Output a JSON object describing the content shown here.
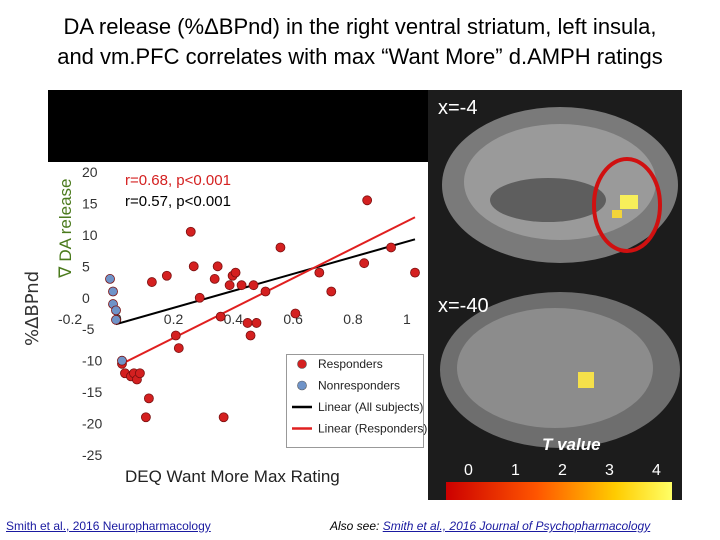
{
  "title": {
    "line1": "DA release (%ΔBPnd) in the right ventral striatum, left insula,",
    "line2": "and vm.PFC correlates with max “Want More” d.AMPH ratings"
  },
  "y_outer_label": "%ΔBPnd",
  "y_inner_label": "ᐁ DA release",
  "stats": {
    "line1": "r=0.68, p<0.001",
    "line2": "r=0.57, p<0.001"
  },
  "brain": {
    "slice1": "x=-4",
    "slice2": "x=-40",
    "colorbar_title": "T value",
    "colorbar_ticks": [
      "0",
      "1",
      "2",
      "3",
      "4"
    ]
  },
  "footer": {
    "left": "Smith et al., 2016 Neuropharmacology",
    "right_prefix": "Also see: ",
    "right_link": "Smith et al., 2016 Journal of Psychopharmacology"
  },
  "colors": {
    "responders": "#d42020",
    "nonresponders": "#6f93c8",
    "fit_all": "#000000",
    "fit_responders": "#e02020",
    "circle": "#d01010"
  },
  "chart_data": {
    "type": "scatter",
    "xlabel": "DEQ Want More Max Rating",
    "ylabel": "",
    "xlim": [
      -0.2,
      1
    ],
    "ylim": [
      -25,
      20
    ],
    "xticks": [
      "-0.2",
      "0",
      "0.2",
      "0.4",
      "0.6",
      "0.8",
      "1"
    ],
    "yticks": [
      "20",
      "15",
      "10",
      "5",
      "0",
      "-5",
      "-10",
      "-15",
      "-20",
      "-25"
    ],
    "legend_position": "bottom-right",
    "series": [
      {
        "name": "Responders",
        "points": [
          [
            0.02,
            -10.5
          ],
          [
            0.03,
            -12
          ],
          [
            0.05,
            -12.5
          ],
          [
            0.06,
            -12
          ],
          [
            0.07,
            -13
          ],
          [
            0.08,
            -12
          ],
          [
            0.1,
            -19
          ],
          [
            0.11,
            -16
          ],
          [
            0.12,
            2.5
          ],
          [
            0.17,
            3.5
          ],
          [
            0.2,
            -6
          ],
          [
            0.21,
            -8
          ],
          [
            0.25,
            10.5
          ],
          [
            0.26,
            5
          ],
          [
            0.28,
            0
          ],
          [
            0.33,
            3
          ],
          [
            0.34,
            5
          ],
          [
            0.35,
            -3
          ],
          [
            0.36,
            -19
          ],
          [
            0.38,
            2
          ],
          [
            0.39,
            3.5
          ],
          [
            0.4,
            4
          ],
          [
            0.42,
            2
          ],
          [
            0.44,
            -4
          ],
          [
            0.45,
            -6
          ],
          [
            0.46,
            2
          ],
          [
            0.47,
            -4
          ],
          [
            0.5,
            1
          ],
          [
            0.55,
            8
          ],
          [
            0.6,
            -2.5
          ],
          [
            0.68,
            4
          ],
          [
            0.72,
            1
          ],
          [
            0.83,
            5.5
          ],
          [
            0.84,
            15.5
          ],
          [
            0.92,
            8
          ],
          [
            1.0,
            4
          ]
        ]
      },
      {
        "name": "Nonresponders",
        "points": [
          [
            -0.02,
            3
          ],
          [
            -0.01,
            1
          ],
          [
            -0.01,
            -1
          ],
          [
            0.0,
            -2
          ],
          [
            0.0,
            -3.5
          ],
          [
            0.02,
            -10
          ]
        ]
      },
      {
        "name": "Linear (All subjects)",
        "line": [
          [
            0.0,
            -4.2
          ],
          [
            1.0,
            9.3
          ]
        ]
      },
      {
        "name": "Linear (Responders)",
        "line": [
          [
            0.02,
            -10.5
          ],
          [
            1.0,
            12.8
          ]
        ]
      }
    ]
  }
}
